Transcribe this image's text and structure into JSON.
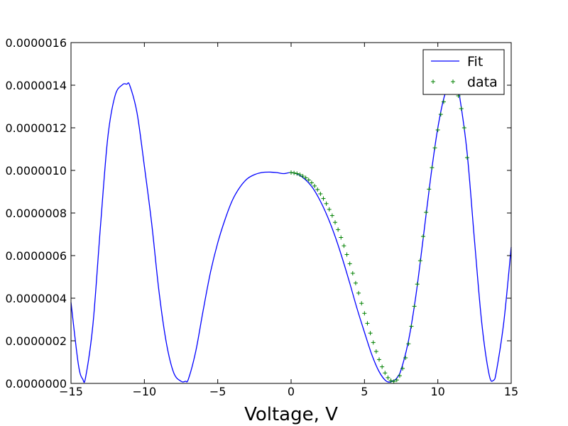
{
  "chart_data": {
    "type": "line",
    "title": "",
    "xlabel": "Voltage, V",
    "ylabel": "",
    "xlim": [
      -15,
      15
    ],
    "ylim": [
      0,
      1.6e-06
    ],
    "grid": false,
    "legend_position": "top-right",
    "x_ticks": [
      -15,
      -10,
      -5,
      0,
      5,
      10,
      15
    ],
    "x_tick_labels": [
      "−15",
      "−10",
      "−5",
      "0",
      "5",
      "10",
      "15"
    ],
    "y_ticks": [
      0,
      2e-07,
      4e-07,
      6e-07,
      8e-07,
      1e-06,
      1.2e-06,
      1.4e-06,
      1.6e-06
    ],
    "y_tick_labels": [
      "0.0000000",
      "0.0000002",
      "0.0000004",
      "0.0000006",
      "0.0000008",
      "0.0000010",
      "0.0000012",
      "0.0000014",
      "0.0000016"
    ],
    "series": [
      {
        "name": "Fit",
        "style": "line",
        "color": "#0000ff",
        "x": [
          -15,
          -14.5,
          -14.2,
          -14,
          -13.5,
          -13,
          -12.5,
          -12,
          -11.5,
          -11.2,
          -11,
          -10.5,
          -10,
          -9.5,
          -9,
          -8.5,
          -8,
          -7.5,
          -7.2,
          -7,
          -6.5,
          -6,
          -5.5,
          -5,
          -4.5,
          -4,
          -3.5,
          -3,
          -2.5,
          -2,
          -1.5,
          -1,
          -0.5,
          0,
          0.5,
          1,
          1.5,
          2,
          2.5,
          3,
          3.5,
          4,
          4.5,
          5,
          5.5,
          6,
          6.5,
          6.9,
          7.2,
          7.5,
          8,
          8.5,
          9,
          9.5,
          10,
          10.5,
          11,
          11.3,
          11.5,
          12,
          12.5,
          13,
          13.5,
          13.8,
          14,
          14.5,
          15
        ],
        "y": [
          3.8e-07,
          9e-08,
          2e-08,
          3e-08,
          2.8e-07,
          7.3e-07,
          1.15e-06,
          1.35e-06,
          1.402e-06,
          1.405e-06,
          1.4e-06,
          1.27e-06,
          1.02e-06,
          7.5e-07,
          4.3e-07,
          1.9e-07,
          5e-08,
          1e-08,
          1e-08,
          2e-08,
          1.5e-07,
          3.4e-07,
          5.2e-07,
          6.6e-07,
          7.7e-07,
          8.6e-07,
          9.2e-07,
          9.6e-07,
          9.8e-07,
          9.9e-07,
          9.92e-07,
          9.9e-07,
          9.85e-07,
          9.9e-07,
          9.8e-07,
          9.55e-07,
          9.15e-07,
          8.55e-07,
          7.8e-07,
          6.9e-07,
          5.85e-07,
          4.7e-07,
          3.5e-07,
          2.4e-07,
          1.35e-07,
          5.5e-08,
          1e-08,
          1e-08,
          2.5e-08,
          6.5e-08,
          2e-07,
          4.1e-07,
          6.8e-07,
          9.6e-07,
          1.2e-06,
          1.36e-06,
          1.405e-06,
          1.39e-06,
          1.34e-06,
          1.08e-06,
          6.7e-07,
          2.8e-07,
          4e-08,
          1.5e-08,
          6e-08,
          2.9e-07,
          6.4e-07
        ]
      },
      {
        "name": "data",
        "style": "markers",
        "marker": "+",
        "color": "#008000",
        "x": [
          0.0,
          0.2,
          0.4,
          0.6,
          0.8,
          1.0,
          1.2,
          1.4,
          1.6,
          1.8,
          2.0,
          2.2,
          2.4,
          2.6,
          2.8,
          3.0,
          3.2,
          3.4,
          3.6,
          3.8,
          4.0,
          4.2,
          4.4,
          4.6,
          4.8,
          5.0,
          5.2,
          5.4,
          5.6,
          5.8,
          6.0,
          6.2,
          6.4,
          6.6,
          6.8,
          7.0,
          7.2,
          7.4,
          7.6,
          7.8,
          8.0,
          8.2,
          8.4,
          8.6,
          8.8,
          9.0,
          9.2,
          9.4,
          9.6,
          9.8,
          10.0,
          10.2,
          10.4,
          10.6,
          10.8,
          11.0,
          11.2,
          11.4,
          11.6,
          11.8,
          12.0
        ],
        "y": [
          9.9e-07,
          9.88e-07,
          9.85e-07,
          9.8e-07,
          9.73e-07,
          9.65e-07,
          9.55e-07,
          9.42e-07,
          9.27e-07,
          9.1e-07,
          8.9e-07,
          8.68e-07,
          8.44e-07,
          8.17e-07,
          7.88e-07,
          7.56e-07,
          7.22e-07,
          6.85e-07,
          6.46e-07,
          6.05e-07,
          5.62e-07,
          5.17e-07,
          4.71e-07,
          4.24e-07,
          3.76e-07,
          3.29e-07,
          2.82e-07,
          2.36e-07,
          1.92e-07,
          1.5e-07,
          1.12e-07,
          7.8e-08,
          4.9e-08,
          2.7e-08,
          1.3e-08,
          9e-09,
          1.6e-08,
          3.6e-08,
          7e-08,
          1.2e-07,
          1.86e-07,
          2.68e-07,
          3.62e-07,
          4.66e-07,
          5.76e-07,
          6.9e-07,
          8.03e-07,
          9.12e-07,
          1.013e-06,
          1.106e-06,
          1.19e-06,
          1.263e-06,
          1.322e-06,
          1.365e-06,
          1.39e-06,
          1.398e-06,
          1.385e-06,
          1.35e-06,
          1.29e-06,
          1.2e-06,
          1.06e-06
        ]
      }
    ]
  }
}
